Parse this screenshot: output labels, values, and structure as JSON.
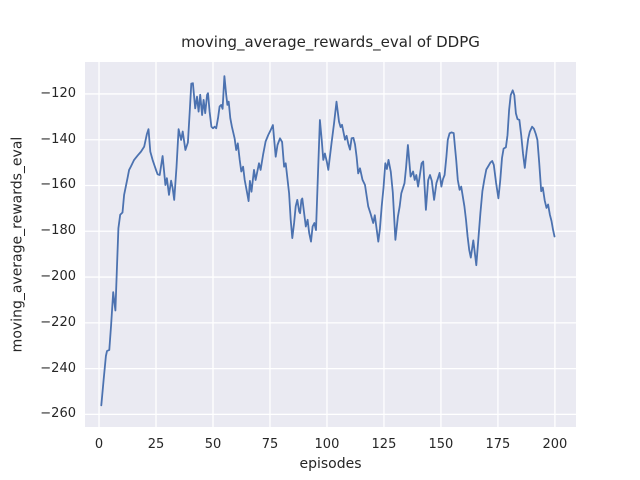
{
  "figure": {
    "title": "moving_average_rewards_eval of DDPG",
    "xlabel": "episodes",
    "ylabel": "moving_average_rewards_eval"
  },
  "chart_data": {
    "type": "line",
    "title": "moving_average_rewards_eval of DDPG",
    "xlabel": "episodes",
    "ylabel": "moving_average_rewards_eval",
    "grid": true,
    "legend": false,
    "plot_bg_color": "#eaeaf2",
    "grid_color": "#ffffff",
    "line_color": "#4c72b0",
    "text_color": "#262626",
    "xlim": [
      -6.15,
      209.25
    ],
    "ylim": [
      -265.5,
      -106.05
    ],
    "x_tick_values": [
      0,
      25,
      50,
      75,
      100,
      125,
      150,
      175,
      200
    ],
    "x_tick_labels": [
      "0",
      "25",
      "50",
      "75",
      "100",
      "125",
      "150",
      "175",
      "200"
    ],
    "y_tick_values": [
      -260,
      -240,
      -220,
      -200,
      -180,
      -160,
      -140,
      -120
    ],
    "y_tick_labels": [
      "−260",
      "−240",
      "−220",
      "−200",
      "−180",
      "−160",
      "−140",
      "−120"
    ],
    "series": [
      {
        "name": "moving_average_rewards_eval",
        "points": [
          [
            1,
            -256
          ],
          [
            2,
            -245
          ],
          [
            3,
            -234.5
          ],
          [
            3.5,
            -232.3
          ],
          [
            4.5,
            -231.8
          ],
          [
            5.3,
            -221
          ],
          [
            6.2,
            -206.6
          ],
          [
            7.2,
            -214.6
          ],
          [
            7.8,
            -197.6
          ],
          [
            8.5,
            -178.7
          ],
          [
            9.3,
            -172.8
          ],
          [
            10.3,
            -171.8
          ],
          [
            11,
            -164.1
          ],
          [
            12.5,
            -156.8
          ],
          [
            13.2,
            -153.2
          ],
          [
            14,
            -151.7
          ],
          [
            15.4,
            -148.8
          ],
          [
            17,
            -146.8
          ],
          [
            18.4,
            -145.2
          ],
          [
            19.8,
            -143
          ],
          [
            21,
            -137.5
          ],
          [
            21.7,
            -135.4
          ],
          [
            22.5,
            -145.2
          ],
          [
            23.5,
            -148.8
          ],
          [
            25,
            -153.2
          ],
          [
            25.7,
            -155.1
          ],
          [
            26.6,
            -155.4
          ],
          [
            27.9,
            -147.1
          ],
          [
            29.1,
            -159.8
          ],
          [
            29.8,
            -156.8
          ],
          [
            30.7,
            -164.1
          ],
          [
            31.6,
            -157.9
          ],
          [
            32.3,
            -161
          ],
          [
            33,
            -166.3
          ],
          [
            34,
            -152
          ],
          [
            34.9,
            -135.4
          ],
          [
            36,
            -140.1
          ],
          [
            36.7,
            -136.4
          ],
          [
            37.9,
            -144.5
          ],
          [
            39,
            -141.2
          ],
          [
            39.8,
            -128
          ],
          [
            40.5,
            -115.5
          ],
          [
            41.2,
            -115.3
          ],
          [
            42.2,
            -126.3
          ],
          [
            43,
            -121.2
          ],
          [
            43.7,
            -127.7
          ],
          [
            44.4,
            -120.4
          ],
          [
            45.2,
            -129.2
          ],
          [
            45.9,
            -122.6
          ],
          [
            46.6,
            -128.4
          ],
          [
            47.4,
            -120.4
          ],
          [
            47.8,
            -119.7
          ],
          [
            48.5,
            -127.7
          ],
          [
            49.3,
            -134.3
          ],
          [
            50,
            -135
          ],
          [
            50.7,
            -134.3
          ],
          [
            51.4,
            -135
          ],
          [
            52.2,
            -130.6
          ],
          [
            52.9,
            -125.5
          ],
          [
            53.6,
            -124.8
          ],
          [
            54.2,
            -126.5
          ],
          [
            55,
            -112.2
          ],
          [
            55.8,
            -120.4
          ],
          [
            56.3,
            -124.8
          ],
          [
            56.9,
            -123.4
          ],
          [
            57.6,
            -130.6
          ],
          [
            58.3,
            -134.3
          ],
          [
            59.5,
            -139.4
          ],
          [
            60.2,
            -144.5
          ],
          [
            60.9,
            -141.6
          ],
          [
            61.7,
            -148.8
          ],
          [
            62.4,
            -153.9
          ],
          [
            63.2,
            -151.8
          ],
          [
            63.9,
            -157.6
          ],
          [
            65,
            -163.4
          ],
          [
            65.6,
            -166.8
          ],
          [
            66.2,
            -158
          ],
          [
            66.9,
            -162.7
          ],
          [
            68,
            -153.2
          ],
          [
            68.7,
            -157.6
          ],
          [
            70.2,
            -150.3
          ],
          [
            70.9,
            -153.2
          ],
          [
            72,
            -146.5
          ],
          [
            73.1,
            -140.8
          ],
          [
            74.2,
            -138
          ],
          [
            75.2,
            -136
          ],
          [
            76.3,
            -133.6
          ],
          [
            77.5,
            -147.4
          ],
          [
            78.3,
            -142.3
          ],
          [
            79.4,
            -139.4
          ],
          [
            80.3,
            -141
          ],
          [
            81.2,
            -151.8
          ],
          [
            81.9,
            -150.3
          ],
          [
            83.4,
            -163.4
          ],
          [
            84.1,
            -175
          ],
          [
            84.8,
            -183
          ],
          [
            85.6,
            -176.4
          ],
          [
            86.3,
            -169.1
          ],
          [
            87,
            -166.3
          ],
          [
            87.8,
            -171.4
          ],
          [
            88.2,
            -172.1
          ],
          [
            88.8,
            -166.3
          ],
          [
            89.2,
            -165.7
          ],
          [
            90.7,
            -177.9
          ],
          [
            91.5,
            -175
          ],
          [
            92.2,
            -180.8
          ],
          [
            93,
            -184.5
          ],
          [
            93.7,
            -177.9
          ],
          [
            94.5,
            -176.4
          ],
          [
            95.2,
            -179.5
          ],
          [
            96,
            -157
          ],
          [
            96.9,
            -131.4
          ],
          [
            97.7,
            -140
          ],
          [
            98.4,
            -148.8
          ],
          [
            99.1,
            -146
          ],
          [
            100,
            -150
          ],
          [
            100.6,
            -153.2
          ],
          [
            102,
            -141.6
          ],
          [
            103.1,
            -133
          ],
          [
            104.2,
            -123.4
          ],
          [
            105.3,
            -132.1
          ],
          [
            106,
            -134.5
          ],
          [
            106.6,
            -133.5
          ],
          [
            107.2,
            -136.5
          ],
          [
            107.9,
            -140
          ],
          [
            108.6,
            -138.3
          ],
          [
            109.4,
            -142
          ],
          [
            110.1,
            -144.3
          ],
          [
            110.8,
            -139.4
          ],
          [
            111.6,
            -139.2
          ],
          [
            112.3,
            -142
          ],
          [
            113,
            -147.4
          ],
          [
            113.7,
            -154.7
          ],
          [
            114.5,
            -152.5
          ],
          [
            115.6,
            -157.5
          ],
          [
            116.7,
            -159.8
          ],
          [
            118.1,
            -169.1
          ],
          [
            119.2,
            -172.5
          ],
          [
            120.3,
            -176.4
          ],
          [
            121,
            -173
          ],
          [
            122.5,
            -184.5
          ],
          [
            123.2,
            -179
          ],
          [
            124,
            -169.1
          ],
          [
            124.8,
            -161
          ],
          [
            125.6,
            -150.3
          ],
          [
            126.3,
            -152.8
          ],
          [
            127,
            -148.8
          ],
          [
            128,
            -154
          ],
          [
            128.9,
            -163
          ],
          [
            130,
            -183.7
          ],
          [
            131.1,
            -173.6
          ],
          [
            131.9,
            -169.1
          ],
          [
            132.6,
            -163.4
          ],
          [
            134,
            -159
          ],
          [
            134.7,
            -152
          ],
          [
            135.5,
            -142.3
          ],
          [
            136.7,
            -156.1
          ],
          [
            137.8,
            -153.9
          ],
          [
            138.5,
            -157.6
          ],
          [
            139.2,
            -155.4
          ],
          [
            140,
            -160.5
          ],
          [
            140.7,
            -156
          ],
          [
            141.5,
            -150.3
          ],
          [
            142.2,
            -149.5
          ],
          [
            143.4,
            -170.6
          ],
          [
            144.4,
            -157.6
          ],
          [
            145.2,
            -155.4
          ],
          [
            146,
            -158
          ],
          [
            147,
            -166.3
          ],
          [
            148,
            -159
          ],
          [
            148.7,
            -156.8
          ],
          [
            149.4,
            -154.5
          ],
          [
            150.2,
            -160.5
          ],
          [
            150.9,
            -157.2
          ],
          [
            151.6,
            -155.4
          ],
          [
            152.4,
            -147.4
          ],
          [
            153,
            -140
          ],
          [
            153.8,
            -137.2
          ],
          [
            154.6,
            -136.8
          ],
          [
            155.6,
            -137.1
          ],
          [
            156.2,
            -143.8
          ],
          [
            156.7,
            -148.8
          ],
          [
            157.4,
            -157.6
          ],
          [
            158.2,
            -161.9
          ],
          [
            158.9,
            -160.5
          ],
          [
            160.3,
            -169.1
          ],
          [
            161,
            -175
          ],
          [
            161.7,
            -182.3
          ],
          [
            162.4,
            -188.1
          ],
          [
            163.1,
            -191.5
          ],
          [
            164.2,
            -184
          ],
          [
            165.5,
            -194.8
          ],
          [
            166.4,
            -183.7
          ],
          [
            167.3,
            -172
          ],
          [
            168.2,
            -162.5
          ],
          [
            169,
            -157.5
          ],
          [
            169.9,
            -153
          ],
          [
            170.8,
            -151.5
          ],
          [
            171.7,
            -150
          ],
          [
            172.5,
            -149.3
          ],
          [
            173.2,
            -151
          ],
          [
            174.2,
            -158.9
          ],
          [
            175.2,
            -165.6
          ],
          [
            176,
            -158
          ],
          [
            176.8,
            -148
          ],
          [
            177.5,
            -143.9
          ],
          [
            178.5,
            -143.3
          ],
          [
            179.2,
            -138
          ],
          [
            179.9,
            -127
          ],
          [
            180.6,
            -120.5
          ],
          [
            181.5,
            -118.4
          ],
          [
            182.2,
            -120.5
          ],
          [
            182.9,
            -128.5
          ],
          [
            183.6,
            -131
          ],
          [
            184.4,
            -131.4
          ],
          [
            185.2,
            -138
          ],
          [
            186,
            -146
          ],
          [
            186.8,
            -152.3
          ],
          [
            187.6,
            -145
          ],
          [
            188.3,
            -139.5
          ],
          [
            189,
            -136.5
          ],
          [
            190,
            -134.3
          ],
          [
            190.8,
            -135.2
          ],
          [
            191.6,
            -137.5
          ],
          [
            192.3,
            -140.1
          ],
          [
            193.1,
            -150
          ],
          [
            194,
            -162.5
          ],
          [
            194.7,
            -160.9
          ],
          [
            195.5,
            -166.5
          ],
          [
            196.3,
            -169.8
          ],
          [
            197,
            -168.3
          ],
          [
            197.8,
            -172.8
          ],
          [
            198.5,
            -175.5
          ],
          [
            199.2,
            -179.5
          ],
          [
            199.8,
            -182.3
          ]
        ]
      }
    ]
  }
}
